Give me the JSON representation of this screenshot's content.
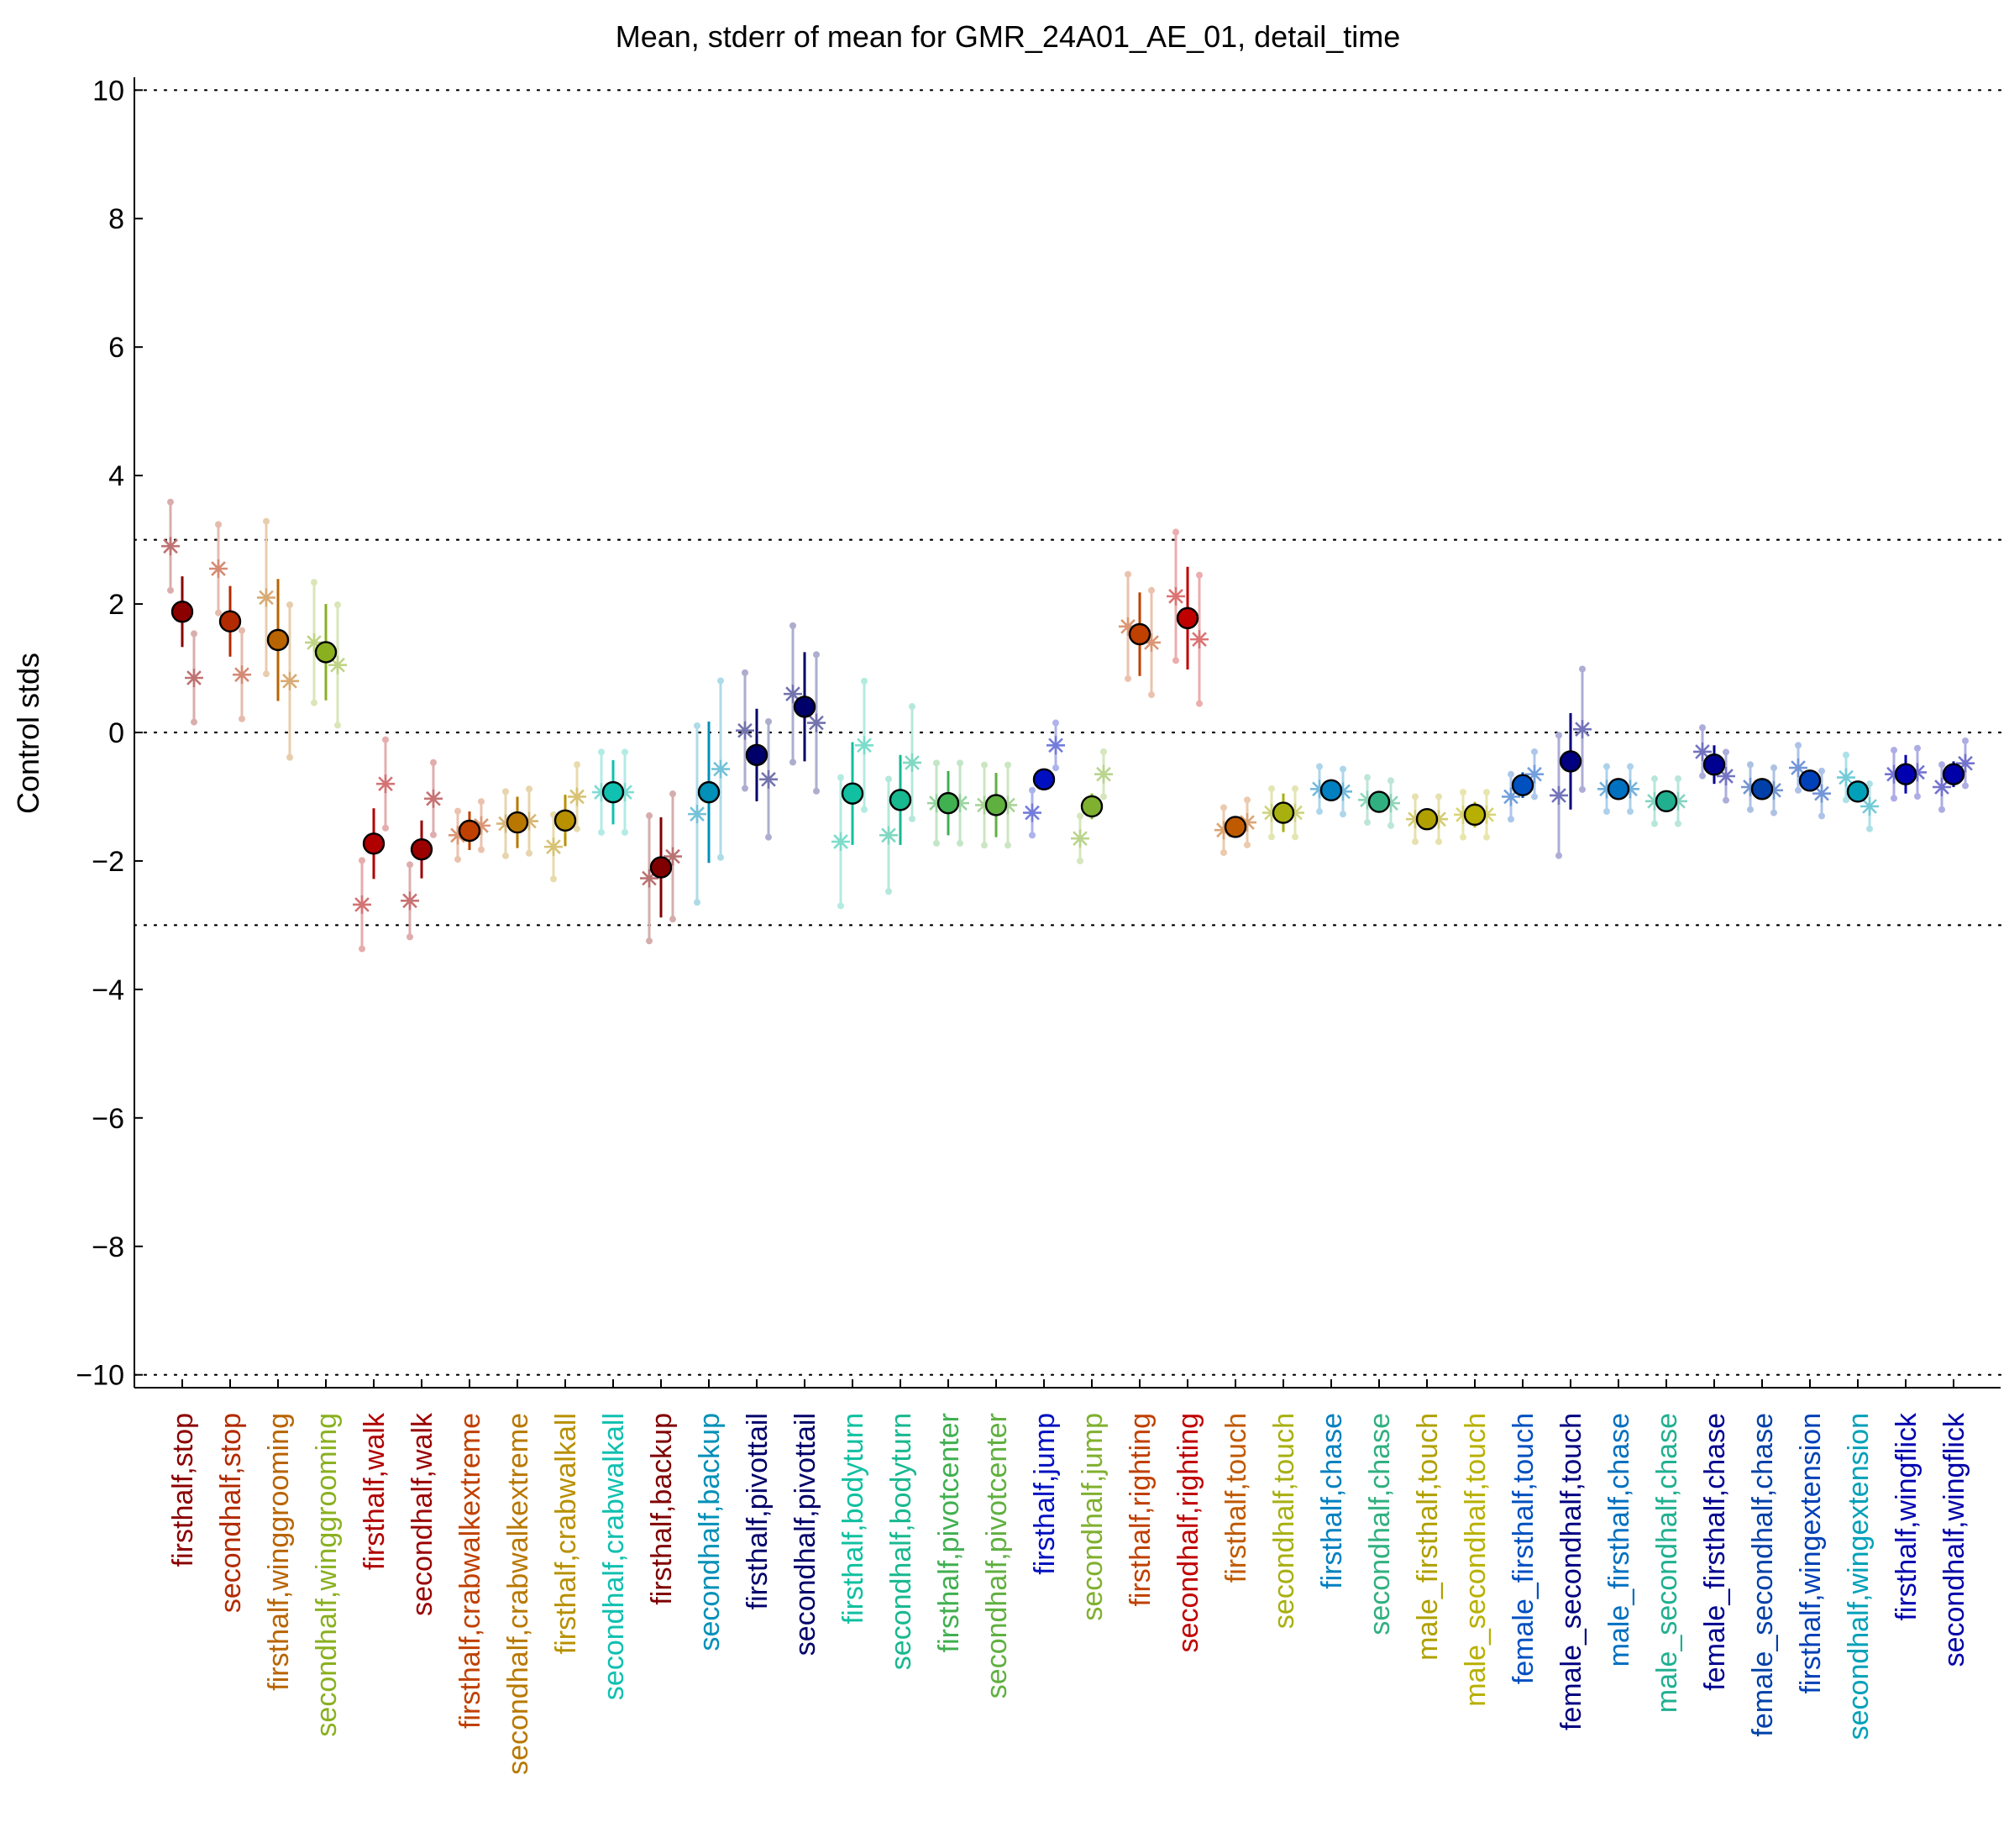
{
  "chart_data": {
    "type": "scatter",
    "title": "Mean, stderr of mean for GMR_24A01_AE_01, detail_time",
    "xlabel": "",
    "ylabel": "Control stds",
    "ylim": [
      -10.2,
      10.2
    ],
    "yticks": [
      {
        "value": 10,
        "label": "10"
      },
      {
        "value": 8,
        "label": "8"
      },
      {
        "value": 6,
        "label": "6"
      },
      {
        "value": 4,
        "label": "4"
      },
      {
        "value": 2,
        "label": "2"
      },
      {
        "value": 0,
        "label": "0"
      },
      {
        "value": -2,
        "label": "−2"
      },
      {
        "value": -4,
        "label": "−4"
      },
      {
        "value": -6,
        "label": "−6"
      },
      {
        "value": -8,
        "label": "−8"
      },
      {
        "value": -10,
        "label": "−10"
      }
    ],
    "reference_lines": [
      10,
      3,
      0,
      -3,
      -10
    ],
    "grid": false,
    "legend": "none",
    "points": [
      {
        "label": "firsthalf,stop",
        "color": "#8b0000",
        "mean": 1.88,
        "err": 0.55,
        "sub": [
          2.9,
          0.85
        ]
      },
      {
        "label": "secondhalf,stop",
        "color": "#b22a00",
        "mean": 1.73,
        "err": 0.55,
        "sub": [
          2.55,
          0.9
        ]
      },
      {
        "label": "firsthalf,winggrooming",
        "color": "#b86400",
        "mean": 1.44,
        "err": 0.95,
        "sub": [
          2.1,
          0.8
        ]
      },
      {
        "label": "secondhalf,winggrooming",
        "color": "#8ab020",
        "mean": 1.25,
        "err": 0.75,
        "sub": [
          1.4,
          1.05
        ]
      },
      {
        "label": "firsthalf,walk",
        "color": "#b00000",
        "mean": -1.73,
        "err": 0.55,
        "sub": [
          -2.68,
          -0.8
        ]
      },
      {
        "label": "secondhalf,walk",
        "color": "#9a0000",
        "mean": -1.82,
        "err": 0.45,
        "sub": [
          -2.62,
          -1.03
        ]
      },
      {
        "label": "firsthalf,crabwalkextreme",
        "color": "#c04000",
        "mean": -1.53,
        "err": 0.3,
        "sub": [
          -1.6,
          -1.45
        ]
      },
      {
        "label": "secondhalf,crabwalkextreme",
        "color": "#b87800",
        "mean": -1.4,
        "err": 0.4,
        "sub": [
          -1.42,
          -1.38
        ]
      },
      {
        "label": "firsthalf,crabwalkall",
        "color": "#b89000",
        "mean": -1.37,
        "err": 0.4,
        "sub": [
          -1.78,
          -1.0
        ]
      },
      {
        "label": "secondhalf,crabwalkall",
        "color": "#10c0b0",
        "mean": -0.93,
        "err": 0.5,
        "sub": [
          -0.93,
          -0.93
        ]
      },
      {
        "label": "firsthalf,backup",
        "color": "#800000",
        "mean": -2.1,
        "err": 0.78,
        "sub": [
          -2.27,
          -1.93
        ]
      },
      {
        "label": "secondhalf,backup",
        "color": "#0090b8",
        "mean": -0.93,
        "err": 1.1,
        "sub": [
          -1.27,
          -0.57
        ]
      },
      {
        "label": "firsthalf,pivottail",
        "color": "#00006a",
        "mean": -0.35,
        "err": 0.72,
        "sub": [
          0.03,
          -0.73
        ]
      },
      {
        "label": "secondhalf,pivottail",
        "color": "#00006a",
        "mean": 0.4,
        "err": 0.85,
        "sub": [
          0.6,
          0.15
        ]
      },
      {
        "label": "firsthalf,bodyturn",
        "color": "#10c0a0",
        "mean": -0.95,
        "err": 0.8,
        "sub": [
          -1.7,
          -0.2
        ]
      },
      {
        "label": "secondhalf,bodyturn",
        "color": "#18b890",
        "mean": -1.05,
        "err": 0.7,
        "sub": [
          -1.6,
          -0.47
        ]
      },
      {
        "label": "firsthalf,pivotcenter",
        "color": "#40b050",
        "mean": -1.1,
        "err": 0.5,
        "sub": [
          -1.1,
          -1.1
        ]
      },
      {
        "label": "secondhalf,pivotcenter",
        "color": "#60b040",
        "mean": -1.13,
        "err": 0.5,
        "sub": [
          -1.13,
          -1.13
        ]
      },
      {
        "label": "firsthalf,jump",
        "color": "#0010c0",
        "mean": -0.73,
        "err": 0.1,
        "sub": [
          -1.25,
          -0.2
        ]
      },
      {
        "label": "secondhalf,jump",
        "color": "#80b030",
        "mean": -1.15,
        "err": 0.2,
        "sub": [
          -1.65,
          -0.65
        ]
      },
      {
        "label": "firsthalf,righting",
        "color": "#c04000",
        "mean": 1.53,
        "err": 0.65,
        "sub": [
          1.65,
          1.4
        ]
      },
      {
        "label": "secondhalf,righting",
        "color": "#c00000",
        "mean": 1.78,
        "err": 0.8,
        "sub": [
          2.12,
          1.45
        ]
      },
      {
        "label": "firsthalf,touch",
        "color": "#c05a00",
        "mean": -1.47,
        "err": 0.1,
        "sub": [
          -1.52,
          -1.4
        ]
      },
      {
        "label": "secondhalf,touch",
        "color": "#a8b010",
        "mean": -1.25,
        "err": 0.3,
        "sub": [
          -1.25,
          -1.25
        ]
      },
      {
        "label": "firsthalf,chase",
        "color": "#0080c0",
        "mean": -0.9,
        "err": 0.1,
        "sub": [
          -0.88,
          -0.92
        ]
      },
      {
        "label": "secondhalf,chase",
        "color": "#30b080",
        "mean": -1.08,
        "err": 0.08,
        "sub": [
          -1.05,
          -1.1
        ]
      },
      {
        "label": "male_firsthalf,touch",
        "color": "#b0a000",
        "mean": -1.35,
        "err": 0.1,
        "sub": [
          -1.35,
          -1.35
        ]
      },
      {
        "label": "male_secondhalf,touch",
        "color": "#b8b000",
        "mean": -1.28,
        "err": 0.2,
        "sub": [
          -1.28,
          -1.28
        ]
      },
      {
        "label": "female_firsthalf,touch",
        "color": "#0050c0",
        "mean": -0.82,
        "err": 0.2,
        "sub": [
          -1.0,
          -0.65
        ]
      },
      {
        "label": "female_secondhalf,touch",
        "color": "#000080",
        "mean": -0.45,
        "err": 0.75,
        "sub": [
          -0.98,
          0.05
        ]
      },
      {
        "label": "male_firsthalf,chase",
        "color": "#0070c0",
        "mean": -0.88,
        "err": 0.1,
        "sub": [
          -0.88,
          -0.88
        ]
      },
      {
        "label": "male_secondhalf,chase",
        "color": "#20b090",
        "mean": -1.07,
        "err": 0.08,
        "sub": [
          -1.07,
          -1.07
        ]
      },
      {
        "label": "female_firsthalf,chase",
        "color": "#000090",
        "mean": -0.5,
        "err": 0.3,
        "sub": [
          -0.3,
          -0.68
        ]
      },
      {
        "label": "female_secondhalf,chase",
        "color": "#0040a8",
        "mean": -0.88,
        "err": 0.1,
        "sub": [
          -0.85,
          -0.9
        ]
      },
      {
        "label": "firsthalf,wingextension",
        "color": "#0040b8",
        "mean": -0.75,
        "err": 0.12,
        "sub": [
          -0.55,
          -0.95
        ]
      },
      {
        "label": "secondhalf,wingextension",
        "color": "#00a0b8",
        "mean": -0.92,
        "err": 0.12,
        "sub": [
          -0.7,
          -1.15
        ]
      },
      {
        "label": "firsthalf,wingflick",
        "color": "#0000b0",
        "mean": -0.65,
        "err": 0.3,
        "sub": [
          -0.65,
          -0.62
        ]
      },
      {
        "label": "secondhalf,wingflick",
        "color": "#0000a8",
        "mean": -0.65,
        "err": 0.2,
        "sub": [
          -0.85,
          -0.48
        ]
      }
    ]
  }
}
